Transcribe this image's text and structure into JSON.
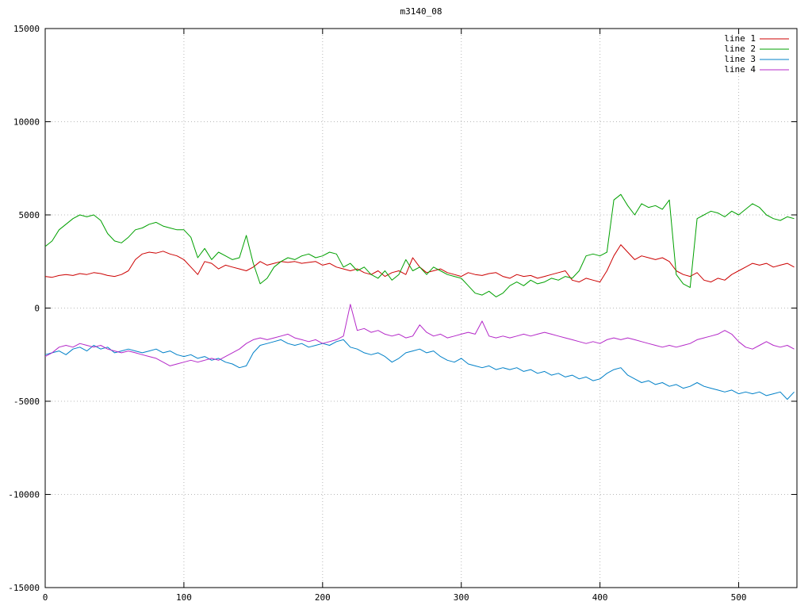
{
  "chart_data": {
    "type": "line",
    "title": "m3140_08",
    "xlabel": "",
    "ylabel": "",
    "xlim": [
      0,
      542
    ],
    "ylim": [
      -15000,
      15000
    ],
    "xticks": [
      0,
      100,
      200,
      300,
      400,
      500
    ],
    "yticks": [
      -15000,
      -10000,
      -5000,
      0,
      5000,
      10000,
      15000
    ],
    "grid": true,
    "grid_style": "dotted",
    "legend_position": "top-right",
    "border_color": "#000000",
    "grid_color": "#b8b8b8",
    "x": {
      "start": 0,
      "step": 5
    },
    "series": [
      {
        "name": "line 1",
        "color": "#cc0000",
        "values": [
          1700,
          1650,
          1750,
          1800,
          1750,
          1850,
          1800,
          1900,
          1850,
          1750,
          1700,
          1800,
          2000,
          2600,
          2900,
          3000,
          2950,
          3050,
          2900,
          2800,
          2600,
          2200,
          1800,
          2500,
          2400,
          2100,
          2300,
          2200,
          2100,
          2000,
          2200,
          2500,
          2300,
          2400,
          2500,
          2450,
          2500,
          2400,
          2450,
          2500,
          2300,
          2400,
          2200,
          2100,
          2000,
          2100,
          1900,
          1800,
          2000,
          1700,
          1900,
          2000,
          1800,
          2700,
          2200,
          1900,
          2000,
          2100,
          1900,
          1800,
          1700,
          1900,
          1800,
          1750,
          1850,
          1900,
          1700,
          1600,
          1800,
          1700,
          1750,
          1600,
          1700,
          1800,
          1900,
          2000,
          1500,
          1400,
          1600,
          1500,
          1400,
          2000,
          2800,
          3400,
          3000,
          2600,
          2800,
          2700,
          2600,
          2700,
          2500,
          2000,
          1800,
          1700,
          1900,
          1500,
          1400,
          1600,
          1500,
          1800,
          2000,
          2200,
          2400,
          2300,
          2400,
          2200,
          2300,
          2400,
          2200
        ]
      },
      {
        "name": "line 2",
        "color": "#00a000",
        "values": [
          3300,
          3600,
          4200,
          4500,
          4800,
          5000,
          4900,
          5000,
          4700,
          4000,
          3600,
          3500,
          3800,
          4200,
          4300,
          4500,
          4600,
          4400,
          4300,
          4200,
          4200,
          3800,
          2700,
          3200,
          2600,
          3000,
          2800,
          2600,
          2700,
          3900,
          2400,
          1300,
          1600,
          2200,
          2500,
          2700,
          2600,
          2800,
          2900,
          2700,
          2800,
          3000,
          2900,
          2200,
          2400,
          2000,
          2200,
          1800,
          1600,
          2000,
          1500,
          1800,
          2600,
          2000,
          2200,
          1800,
          2200,
          2000,
          1800,
          1700,
          1600,
          1200,
          800,
          700,
          900,
          600,
          800,
          1200,
          1400,
          1200,
          1500,
          1300,
          1400,
          1600,
          1500,
          1700,
          1600,
          2000,
          2800,
          2900,
          2800,
          3000,
          5800,
          6100,
          5500,
          5000,
          5600,
          5400,
          5500,
          5300,
          5800,
          1800,
          1300,
          1100,
          4800,
          5000,
          5200,
          5100,
          4900,
          5200,
          5000,
          5300,
          5600,
          5400,
          5000,
          4800,
          4700,
          4900,
          4800
        ]
      },
      {
        "name": "line 3",
        "color": "#0080c8",
        "values": [
          -2500,
          -2400,
          -2300,
          -2500,
          -2200,
          -2100,
          -2300,
          -2000,
          -2200,
          -2100,
          -2400,
          -2300,
          -2200,
          -2300,
          -2400,
          -2300,
          -2200,
          -2400,
          -2300,
          -2500,
          -2600,
          -2500,
          -2700,
          -2600,
          -2800,
          -2700,
          -2900,
          -3000,
          -3200,
          -3100,
          -2400,
          -2000,
          -1900,
          -1800,
          -1700,
          -1900,
          -2000,
          -1900,
          -2100,
          -2000,
          -1900,
          -2000,
          -1800,
          -1700,
          -2100,
          -2200,
          -2400,
          -2500,
          -2400,
          -2600,
          -2900,
          -2700,
          -2400,
          -2300,
          -2200,
          -2400,
          -2300,
          -2600,
          -2800,
          -2900,
          -2700,
          -3000,
          -3100,
          -3200,
          -3100,
          -3300,
          -3200,
          -3300,
          -3200,
          -3400,
          -3300,
          -3500,
          -3400,
          -3600,
          -3500,
          -3700,
          -3600,
          -3800,
          -3700,
          -3900,
          -3800,
          -3500,
          -3300,
          -3200,
          -3600,
          -3800,
          -4000,
          -3900,
          -4100,
          -4000,
          -4200,
          -4100,
          -4300,
          -4200,
          -4000,
          -4200,
          -4300,
          -4400,
          -4500,
          -4400,
          -4600,
          -4500,
          -4600,
          -4500,
          -4700,
          -4600,
          -4500,
          -4900,
          -4500
        ]
      },
      {
        "name": "line 4",
        "color": "#b428c8",
        "values": [
          -2600,
          -2400,
          -2100,
          -2000,
          -2100,
          -1900,
          -2000,
          -2100,
          -2000,
          -2200,
          -2300,
          -2400,
          -2300,
          -2400,
          -2500,
          -2600,
          -2700,
          -2900,
          -3100,
          -3000,
          -2900,
          -2800,
          -2900,
          -2800,
          -2700,
          -2800,
          -2600,
          -2400,
          -2200,
          -1900,
          -1700,
          -1600,
          -1700,
          -1600,
          -1500,
          -1400,
          -1600,
          -1700,
          -1800,
          -1700,
          -1900,
          -1800,
          -1700,
          -1500,
          200,
          -1200,
          -1100,
          -1300,
          -1200,
          -1400,
          -1500,
          -1400,
          -1600,
          -1500,
          -900,
          -1300,
          -1500,
          -1400,
          -1600,
          -1500,
          -1400,
          -1300,
          -1400,
          -700,
          -1500,
          -1600,
          -1500,
          -1600,
          -1500,
          -1400,
          -1500,
          -1400,
          -1300,
          -1400,
          -1500,
          -1600,
          -1700,
          -1800,
          -1900,
          -1800,
          -1900,
          -1700,
          -1600,
          -1700,
          -1600,
          -1700,
          -1800,
          -1900,
          -2000,
          -2100,
          -2000,
          -2100,
          -2000,
          -1900,
          -1700,
          -1600,
          -1500,
          -1400,
          -1200,
          -1400,
          -1800,
          -2100,
          -2200,
          -2000,
          -1800,
          -2000,
          -2100,
          -2000,
          -2200
        ]
      }
    ]
  }
}
